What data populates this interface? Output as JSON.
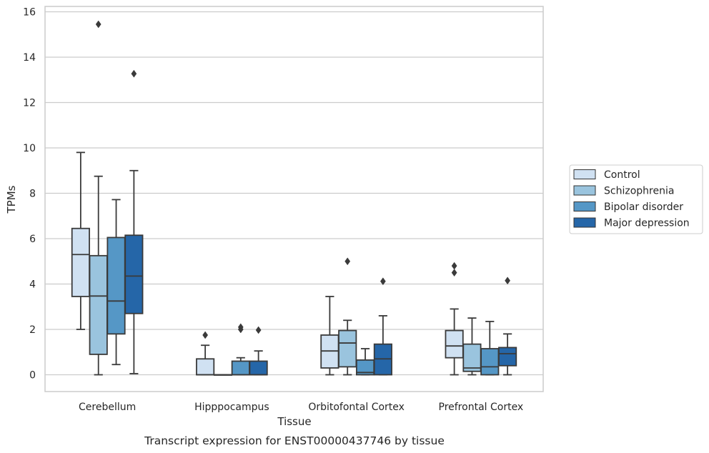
{
  "chart_data": {
    "type": "boxplot",
    "xlabel": "Tissue",
    "ylabel": "TPMs",
    "caption": "Transcript expression for ENST00000437746 by tissue",
    "ylim": [
      -0.75,
      16.2
    ],
    "yticks": [
      0,
      2,
      4,
      6,
      8,
      10,
      12,
      14,
      16
    ],
    "grid": "horizontal",
    "legend_position": "right",
    "categories": [
      "Cerebellum",
      "Hipppocampus",
      "Orbitofontal Cortex",
      "Prefrontal Cortex"
    ],
    "series": [
      {
        "name": "Control",
        "color": "#d0e1f2",
        "boxes": [
          {
            "whisker_low": 2.0,
            "q1": 3.45,
            "median": 5.3,
            "q3": 6.45,
            "whisker_high": 9.8,
            "outliers": []
          },
          {
            "whisker_low": 0.0,
            "q1": 0.0,
            "median": 0.0,
            "q3": 0.7,
            "whisker_high": 1.3,
            "outliers": [
              1.75
            ]
          },
          {
            "whisker_low": 0.0,
            "q1": 0.3,
            "median": 1.05,
            "q3": 1.75,
            "whisker_high": 3.45,
            "outliers": []
          },
          {
            "whisker_low": 0.0,
            "q1": 0.75,
            "median": 1.27,
            "q3": 1.95,
            "whisker_high": 2.9,
            "outliers": [
              4.5,
              4.8
            ]
          }
        ]
      },
      {
        "name": "Schizophrenia",
        "color": "#9ac4de",
        "boxes": [
          {
            "whisker_low": 0.0,
            "q1": 0.9,
            "median": 3.47,
            "q3": 5.25,
            "whisker_high": 8.75,
            "outliers": [
              15.45
            ]
          },
          {
            "whisker_low": 0.0,
            "q1": 0.0,
            "median": 0.0,
            "q3": 0.0,
            "whisker_high": 0.0,
            "outliers": []
          },
          {
            "whisker_low": 0.0,
            "q1": 0.35,
            "median": 1.4,
            "q3": 1.95,
            "whisker_high": 2.4,
            "outliers": [
              5.0
            ]
          },
          {
            "whisker_low": 0.0,
            "q1": 0.15,
            "median": 0.3,
            "q3": 1.35,
            "whisker_high": 2.5,
            "outliers": []
          }
        ]
      },
      {
        "name": "Bipolar disorder",
        "color": "#5597c6",
        "boxes": [
          {
            "whisker_low": 0.45,
            "q1": 1.8,
            "median": 3.25,
            "q3": 6.05,
            "whisker_high": 7.72,
            "outliers": []
          },
          {
            "whisker_low": 0.0,
            "q1": 0.0,
            "median": 0.0,
            "q3": 0.6,
            "whisker_high": 0.75,
            "outliers": [
              2.0,
              2.1
            ]
          },
          {
            "whisker_low": 0.0,
            "q1": 0.0,
            "median": 0.1,
            "q3": 0.65,
            "whisker_high": 1.15,
            "outliers": []
          },
          {
            "whisker_low": 0.0,
            "q1": 0.0,
            "median": 0.35,
            "q3": 1.15,
            "whisker_high": 2.35,
            "outliers": []
          }
        ]
      },
      {
        "name": "Major depression",
        "color": "#2566a8",
        "boxes": [
          {
            "whisker_low": 0.05,
            "q1": 2.7,
            "median": 4.35,
            "q3": 6.15,
            "whisker_high": 9.0,
            "outliers": [
              13.27
            ]
          },
          {
            "whisker_low": 0.0,
            "q1": 0.0,
            "median": 0.0,
            "q3": 0.6,
            "whisker_high": 1.05,
            "outliers": [
              1.97
            ]
          },
          {
            "whisker_low": 0.0,
            "q1": 0.0,
            "median": 0.7,
            "q3": 1.35,
            "whisker_high": 2.6,
            "outliers": [
              4.12
            ]
          },
          {
            "whisker_low": 0.0,
            "q1": 0.4,
            "median": 0.93,
            "q3": 1.2,
            "whisker_high": 1.8,
            "outliers": [
              4.15
            ]
          }
        ]
      }
    ]
  }
}
